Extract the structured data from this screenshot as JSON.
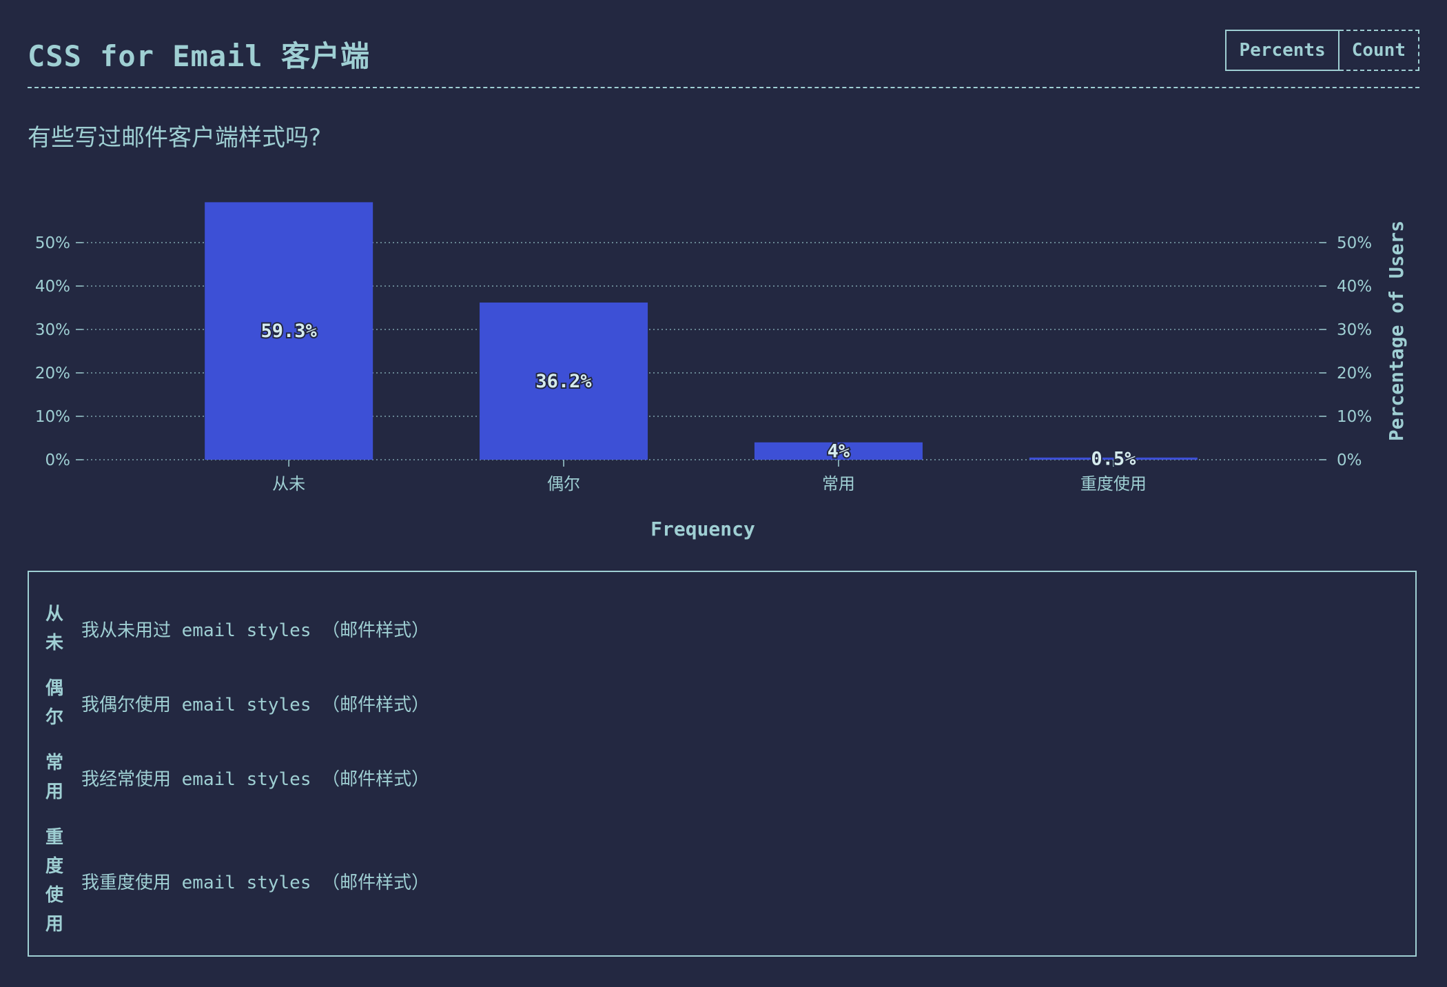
{
  "header": {
    "title": "CSS for Email 客户端",
    "toggle": {
      "percents_label": "Percents",
      "count_label": "Count",
      "selected": "Percents"
    }
  },
  "question": "有些写过邮件客户端样式吗?",
  "colors": {
    "background": "#232841",
    "bar": "#3d50d6",
    "text": "#9fcfd3"
  },
  "chart_data": {
    "type": "bar",
    "categories": [
      "从未",
      "偶尔",
      "常用",
      "重度使用"
    ],
    "values": [
      59.3,
      36.2,
      4,
      0.5
    ],
    "data_labels": [
      "59.3%",
      "36.2%",
      "4%",
      "0.5%"
    ],
    "xlabel": "Frequency",
    "ylabel": "Percentage of Users",
    "ylim": [
      0,
      50
    ],
    "yticks": [
      "0%",
      "10%",
      "20%",
      "30%",
      "40%",
      "50%"
    ],
    "grid": true,
    "axes": "left-and-right"
  },
  "legend": {
    "items": [
      {
        "key": "从未",
        "description": "我从未用过 email styles （邮件样式）"
      },
      {
        "key": "偶尔",
        "description": "我偶尔使用 email styles （邮件样式）"
      },
      {
        "key": "常用",
        "description": "我经常使用 email styles （邮件样式）"
      },
      {
        "key": "重度使用",
        "description": "我重度使用 email styles （邮件样式）"
      }
    ]
  }
}
